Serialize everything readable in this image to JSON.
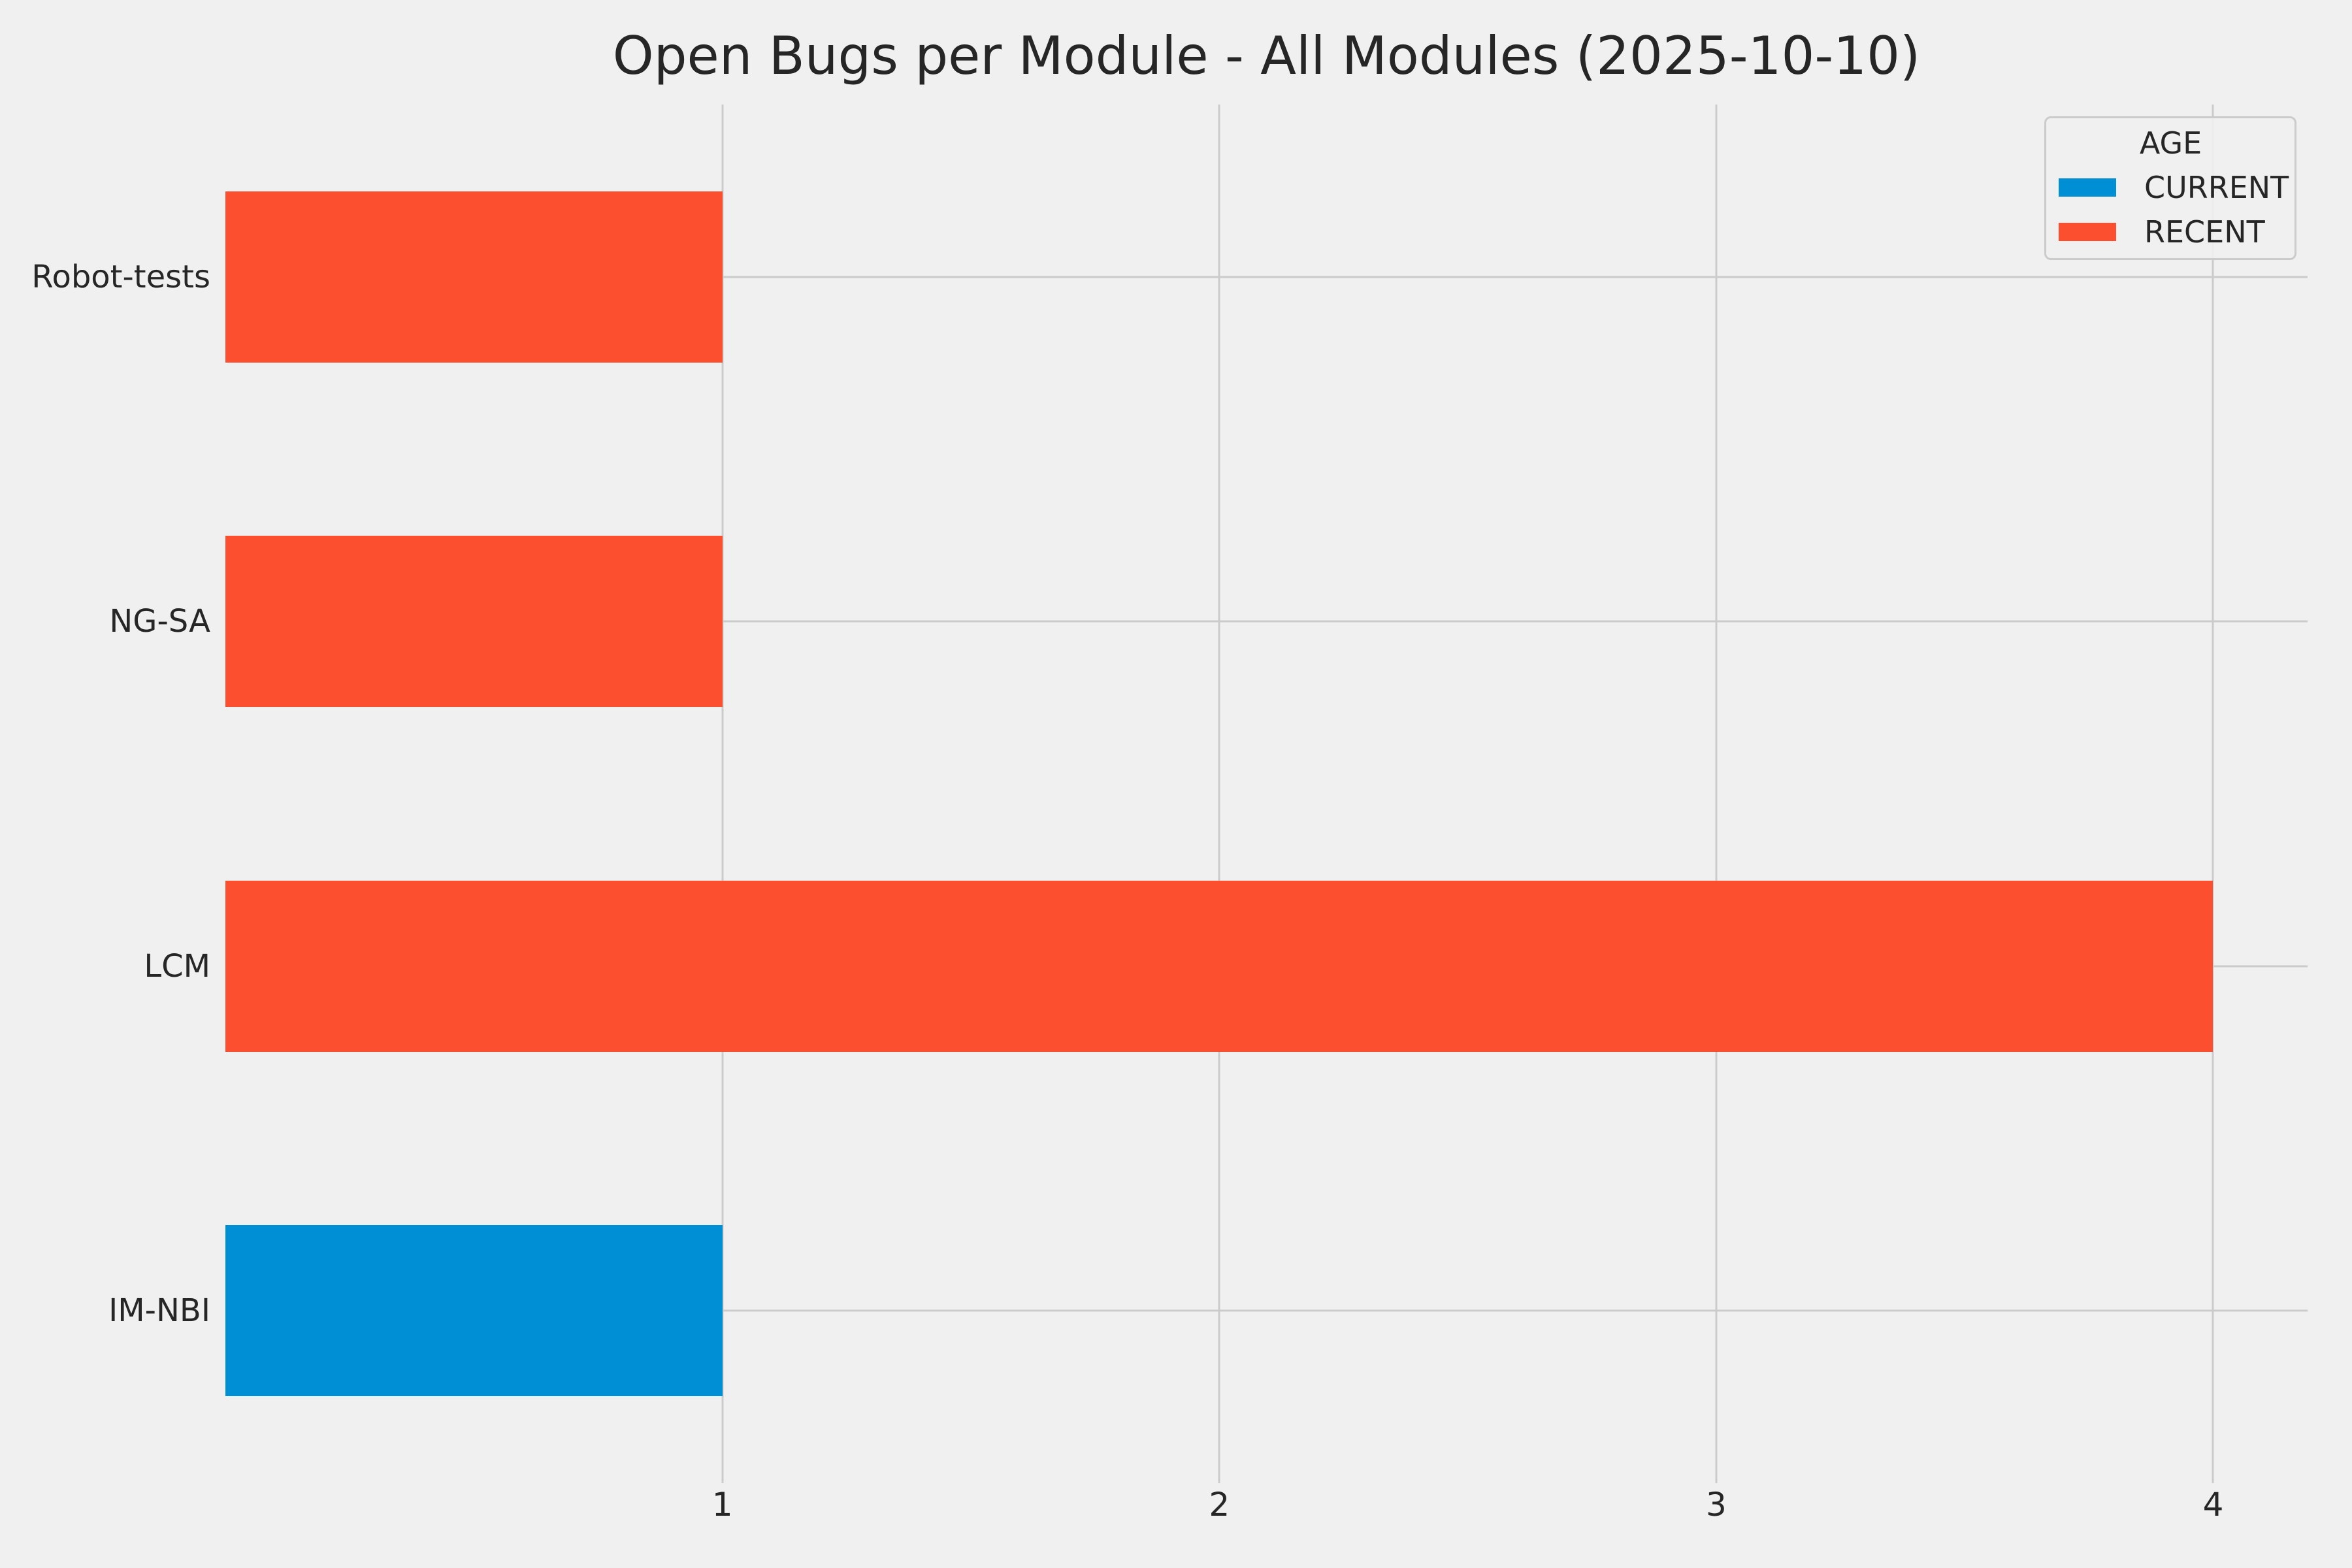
{
  "chart_data": {
    "type": "bar",
    "orientation": "horizontal",
    "title": "Open Bugs per Module - All Modules (2025-10-10)",
    "categories": [
      "Robot-tests",
      "NG-SA",
      "LCM",
      "IM-NBI"
    ],
    "values": [
      1,
      1,
      4,
      1
    ],
    "groups": [
      "RECENT",
      "RECENT",
      "RECENT",
      "CURRENT"
    ],
    "xlabel": "",
    "ylabel": "",
    "xticks": [
      1,
      2,
      3,
      4
    ],
    "xlim": [
      0,
      4.19
    ],
    "grid": true,
    "legend": {
      "title": "AGE",
      "position": "upper right",
      "entries": [
        {
          "label": "CURRENT",
          "color": "#008fd5"
        },
        {
          "label": "RECENT",
          "color": "#fc4f30"
        }
      ]
    },
    "colors": {
      "CURRENT": "#008fd5",
      "RECENT": "#fc4f30"
    },
    "background_color": "#f0f0f0",
    "gridline_color": "#cbcbcb",
    "text_color": "#262626"
  }
}
